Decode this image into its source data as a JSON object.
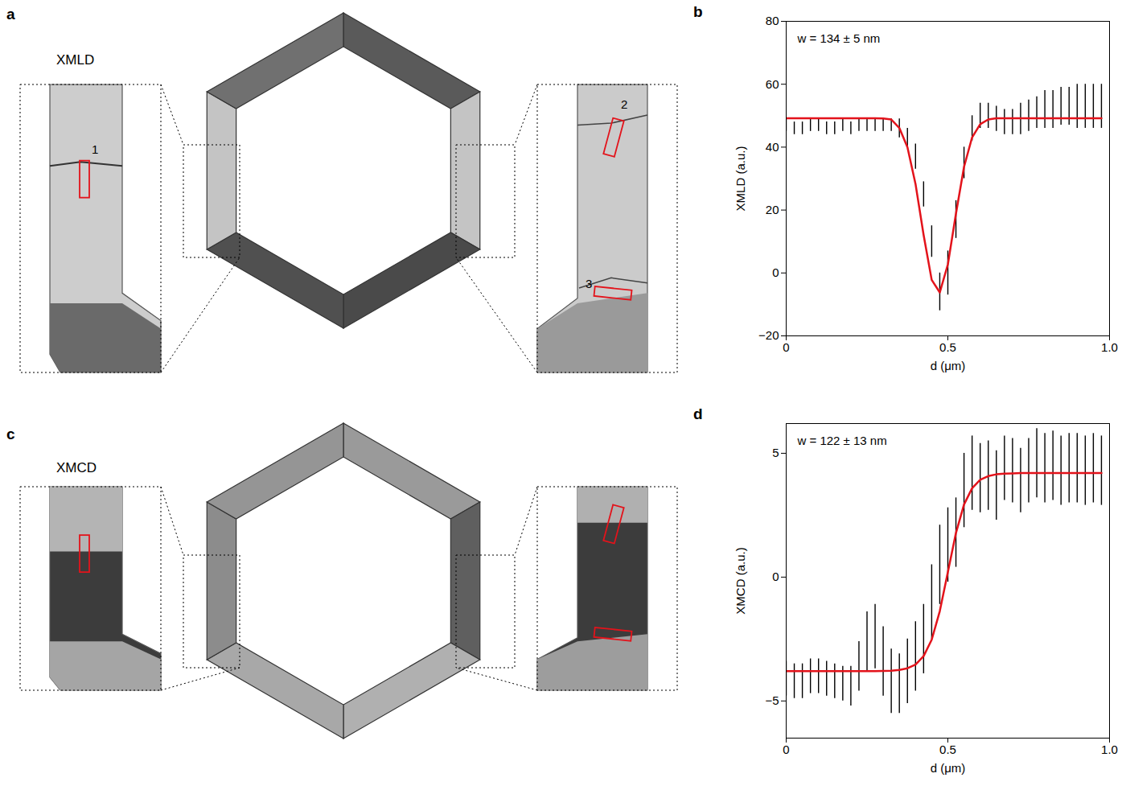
{
  "images": [
    {
      "panel_label": "a",
      "label": "XMLD",
      "markers": [
        "1",
        "2",
        "3"
      ]
    },
    {
      "panel_label": "c",
      "label": "XMCD"
    }
  ],
  "chart_data": [
    {
      "type": "line",
      "panel_label": "b",
      "annotations": [
        "w = 134 ± 5 nm"
      ],
      "x_label": "d (μm)",
      "y_label": "XMLD (a.u.)",
      "grid": false,
      "x": [
        0,
        0.025,
        0.05,
        0.075,
        0.1,
        0.125,
        0.15,
        0.175,
        0.2,
        0.225,
        0.25,
        0.275,
        0.3,
        0.325,
        0.35,
        0.375,
        0.4,
        0.425,
        0.45,
        0.475,
        0.5,
        0.525,
        0.55,
        0.575,
        0.6,
        0.625,
        0.65,
        0.675,
        0.7,
        0.725,
        0.75,
        0.775,
        0.8,
        0.825,
        0.85,
        0.875,
        0.9,
        0.925,
        0.95,
        0.975
      ],
      "xlim": [
        0,
        1
      ],
      "xticks": [
        0,
        0.5,
        {
          "value": 1,
          "label": "1.0"
        }
      ],
      "ylim": [
        -20,
        80
      ],
      "yticks": [
        -20,
        0,
        20,
        40,
        60,
        80
      ],
      "series": [
        {
          "type": "errorbar",
          "color": "#000000",
          "values": [
            47,
            46,
            46,
            47,
            47,
            46,
            46,
            47,
            46,
            47,
            47,
            47,
            47,
            47,
            46,
            43,
            37,
            25,
            10,
            -6,
            0,
            17,
            35,
            46,
            50,
            50,
            49,
            48,
            48,
            49,
            50,
            51,
            52,
            52,
            53,
            53,
            53,
            53,
            53,
            53
          ],
          "errors": [
            2,
            2,
            2,
            2,
            2,
            2,
            2,
            2,
            2,
            2,
            2,
            2,
            2,
            2,
            3,
            3,
            4,
            4,
            5,
            6,
            7,
            6,
            5,
            4,
            4,
            4,
            4,
            4,
            4,
            5,
            5,
            5,
            6,
            6,
            6,
            6,
            7,
            7,
            7,
            7
          ]
        },
        {
          "type": "line",
          "color": "#e3131b",
          "values": [
            49.2,
            49.2,
            49.2,
            49.2,
            49.2,
            49.2,
            49.2,
            49.2,
            49.2,
            49.2,
            49.2,
            49.2,
            49.1,
            48.8,
            46.1,
            40.0,
            28.3,
            12.1,
            -2.2,
            -6.2,
            2.7,
            18.8,
            33.7,
            43.1,
            47.3,
            48.8,
            49.2,
            49.2,
            49.2,
            49.2,
            49.2,
            49.2,
            49.2,
            49.2,
            49.2,
            49.2,
            49.2,
            49.2,
            49.2,
            49.2
          ]
        }
      ]
    },
    {
      "type": "line",
      "panel_label": "d",
      "annotations": [
        "w = 122 ± 13 nm"
      ],
      "x_label": "d (μm)",
      "y_label": "XMCD (a.u.)",
      "grid": false,
      "x": [
        0,
        0.025,
        0.05,
        0.075,
        0.1,
        0.125,
        0.15,
        0.175,
        0.2,
        0.225,
        0.25,
        0.275,
        0.3,
        0.325,
        0.35,
        0.375,
        0.4,
        0.425,
        0.45,
        0.475,
        0.5,
        0.525,
        0.55,
        0.575,
        0.6,
        0.625,
        0.65,
        0.675,
        0.7,
        0.725,
        0.75,
        0.775,
        0.8,
        0.825,
        0.85,
        0.875,
        0.9,
        0.925,
        0.95,
        0.975
      ],
      "xlim": [
        0,
        1
      ],
      "xticks": [
        0,
        0.5,
        {
          "value": 1,
          "label": "1.0"
        }
      ],
      "ylim": [
        -6.5,
        6.2
      ],
      "yticks": [
        -5,
        0,
        5
      ],
      "series": [
        {
          "type": "errorbar",
          "color": "#000000",
          "values": [
            -4.1,
            -4.2,
            -4.2,
            -4.0,
            -4.0,
            -4.1,
            -4.2,
            -4.3,
            -4.4,
            -3.6,
            -2.6,
            -2.4,
            -3.4,
            -4.2,
            -4.3,
            -3.8,
            -3.2,
            -2.5,
            -1.0,
            0.5,
            1.3,
            1.8,
            3.5,
            4.2,
            4.0,
            4.1,
            3.7,
            4.4,
            4.3,
            3.9,
            4.3,
            4.6,
            4.4,
            4.5,
            4.3,
            4.4,
            4.4,
            4.3,
            4.4,
            4.3
          ],
          "errors": [
            0.7,
            0.7,
            0.7,
            0.7,
            0.7,
            0.7,
            0.7,
            0.7,
            0.8,
            1.0,
            1.2,
            1.3,
            1.4,
            1.3,
            1.2,
            1.3,
            1.4,
            1.4,
            1.5,
            1.6,
            1.5,
            1.4,
            1.5,
            1.5,
            1.4,
            1.4,
            1.4,
            1.3,
            1.3,
            1.3,
            1.3,
            1.4,
            1.4,
            1.4,
            1.4,
            1.4,
            1.4,
            1.4,
            1.4,
            1.4
          ]
        },
        {
          "type": "line",
          "color": "#e3131b",
          "values": [
            -3.8,
            -3.8,
            -3.8,
            -3.8,
            -3.8,
            -3.8,
            -3.8,
            -3.8,
            -3.8,
            -3.8,
            -3.8,
            -3.8,
            -3.79,
            -3.78,
            -3.75,
            -3.68,
            -3.53,
            -3.19,
            -2.53,
            -1.38,
            0.2,
            1.78,
            2.93,
            3.59,
            3.93,
            4.08,
            4.15,
            4.18,
            4.19,
            4.2,
            4.2,
            4.2,
            4.2,
            4.2,
            4.2,
            4.2,
            4.2,
            4.2,
            4.2,
            4.2
          ]
        }
      ]
    }
  ]
}
